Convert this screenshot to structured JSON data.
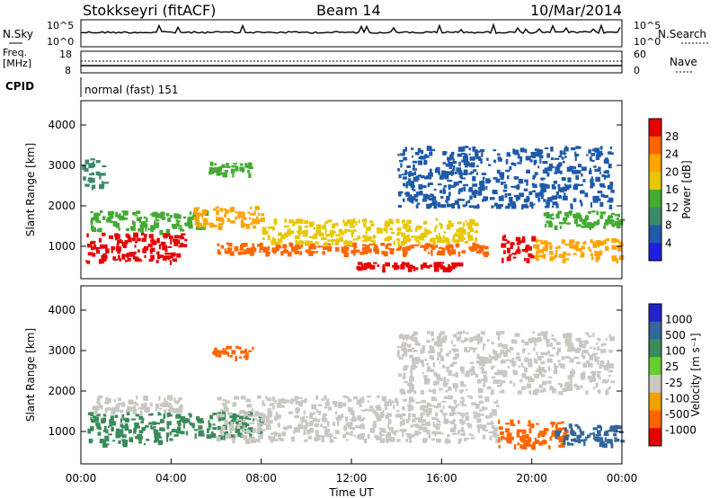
{
  "header": {
    "station": "Stokkseyri (fitACF)",
    "beam": "Beam 14",
    "date": "10/Mar/2014"
  },
  "top_panels": {
    "nsky_label": "N.Sky",
    "nsky_ticks": [
      "10^5",
      "10^0"
    ],
    "nsearch_label": "N.Search",
    "nsearch_ticks": [
      "10^5",
      "10^0"
    ],
    "freq_label": "Freq.",
    "freq_unit": "[MHz]",
    "freq_ticks": [
      "18",
      "8"
    ],
    "nave_label": "Nave",
    "nave_ticks": [
      "60",
      "0"
    ],
    "cpid_label": "CPID",
    "cpid_value": "normal (fast) 151"
  },
  "chart_data": [
    {
      "type": "heatmap",
      "name": "Power",
      "ylabel": "Slant Range [km]",
      "yticks": [
        1000,
        2000,
        3000,
        4000
      ],
      "ylim": [
        200,
        4600
      ],
      "xlim": [
        0,
        24
      ],
      "colorbar": {
        "label": "Power [dB]",
        "ticks": [
          "28",
          "24",
          "20",
          "16",
          "12",
          "8",
          "4"
        ],
        "colors": [
          "#e60000",
          "#ff6600",
          "#ffa500",
          "#e6c800",
          "#44aa33",
          "#3a8a6a",
          "#1f5aa8",
          "#1f1fdd"
        ]
      },
      "regions": [
        {
          "t0": 0.2,
          "t1": 4.6,
          "r0": 650,
          "r1": 1350,
          "level": 28
        },
        {
          "t0": 0.4,
          "t1": 5.5,
          "r0": 1400,
          "r1": 1900,
          "level": 12
        },
        {
          "t0": 5.0,
          "t1": 8.0,
          "r0": 1500,
          "r1": 2000,
          "level": 20
        },
        {
          "t0": 6.0,
          "t1": 18.0,
          "r0": 850,
          "r1": 1100,
          "level": 26
        },
        {
          "t0": 12.2,
          "t1": 16.8,
          "r0": 480,
          "r1": 620,
          "level": 28
        },
        {
          "t0": 8.0,
          "t1": 17.5,
          "r0": 1100,
          "r1": 1700,
          "level": 16
        },
        {
          "t0": 18.6,
          "t1": 20.0,
          "r0": 700,
          "r1": 1300,
          "level": 28
        },
        {
          "t0": 20.0,
          "t1": 24.0,
          "r0": 700,
          "r1": 1200,
          "level": 22
        },
        {
          "t0": 20.5,
          "t1": 24.0,
          "r0": 1500,
          "r1": 1900,
          "level": 12
        },
        {
          "t0": 0.0,
          "t1": 1.0,
          "r0": 2500,
          "r1": 3200,
          "level": 8
        },
        {
          "t0": 5.5,
          "t1": 7.5,
          "r0": 2800,
          "r1": 3100,
          "level": 12
        },
        {
          "t0": 14.0,
          "t1": 23.5,
          "r0": 2000,
          "r1": 3500,
          "level": 4
        }
      ]
    },
    {
      "type": "heatmap",
      "name": "Velocity",
      "ylabel": "Slant Range [km]",
      "yticks": [
        1000,
        2000,
        3000,
        4000
      ],
      "ylim": [
        200,
        4600
      ],
      "xlim": [
        0,
        24
      ],
      "xticks": [
        "00:00",
        "04:00",
        "08:00",
        "12:00",
        "16:00",
        "20:00",
        "00:00"
      ],
      "xlabel": "Time UT",
      "colorbar": {
        "label": "Velocity [m s⁻¹]",
        "ticks": [
          "1000",
          "500",
          "100",
          "25",
          "-25",
          "-100",
          "-500",
          "-1000"
        ],
        "colors": [
          "#2222cc",
          "#336699",
          "#3b8a5a",
          "#66cc33",
          "#c8c8c0",
          "#f0a000",
          "#ff6600",
          "#e60000"
        ]
      },
      "regions": [
        {
          "t0": 0.2,
          "t1": 4.0,
          "r0": 700,
          "r1": 1500,
          "level": 100
        },
        {
          "t0": 4.0,
          "t1": 8.0,
          "r0": 900,
          "r1": 1500,
          "level": 100
        },
        {
          "t0": 6.0,
          "t1": 18.5,
          "r0": 800,
          "r1": 1900,
          "level": 0
        },
        {
          "t0": 5.8,
          "t1": 7.6,
          "r0": 2850,
          "r1": 3150,
          "level": -500
        },
        {
          "t0": 18.5,
          "t1": 21.5,
          "r0": 650,
          "r1": 1300,
          "level": -500
        },
        {
          "t0": 21.0,
          "t1": 24.0,
          "r0": 700,
          "r1": 1200,
          "level": 500
        },
        {
          "t0": 0.5,
          "t1": 4.5,
          "r0": 1500,
          "r1": 1900,
          "level": 0
        },
        {
          "t0": 14.0,
          "t1": 23.5,
          "r0": 2000,
          "r1": 3500,
          "level": 0
        }
      ]
    }
  ]
}
